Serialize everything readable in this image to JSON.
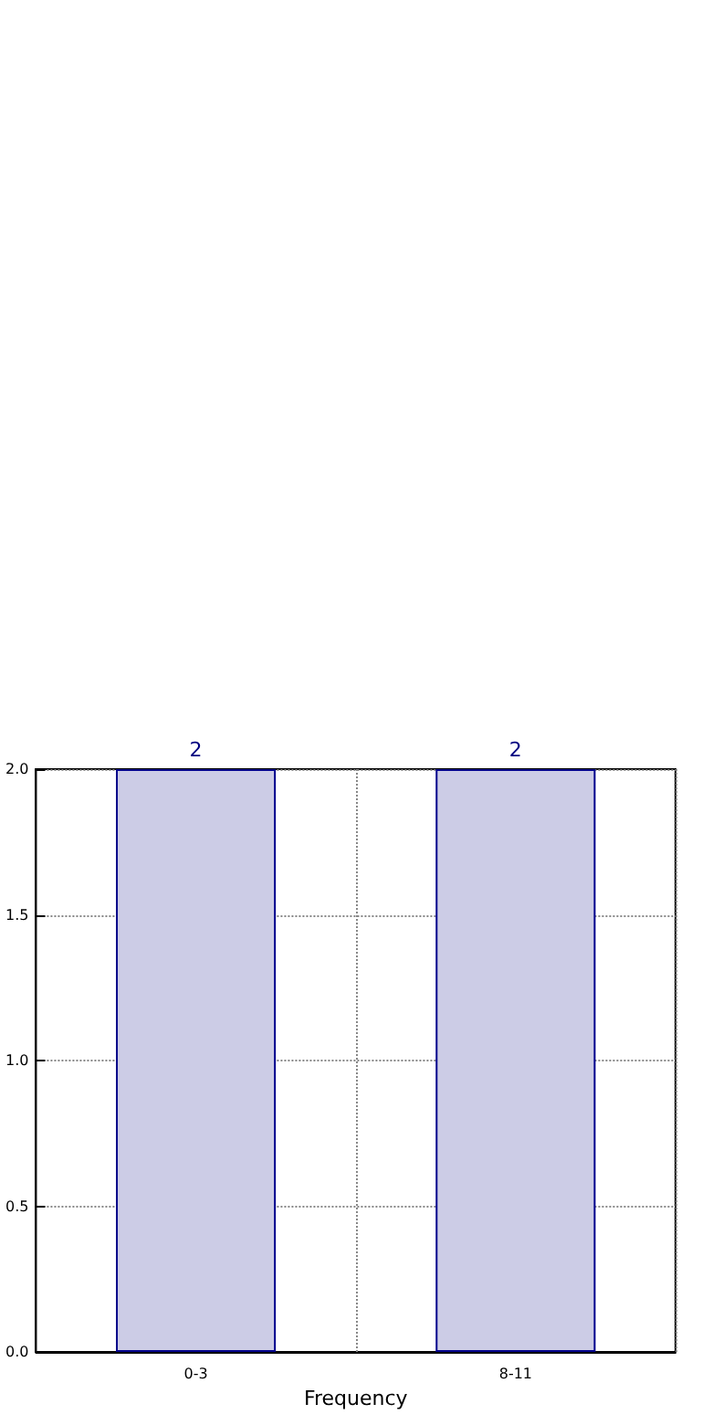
{
  "chart_data": {
    "type": "bar",
    "xlabel": "Frequency",
    "categories": [
      "0-3",
      "8-11"
    ],
    "values": [
      2,
      2
    ],
    "color": "#cccce6",
    "ylim": [
      0,
      2
    ],
    "yticks": [
      {
        "value": 0,
        "label": "0.0"
      },
      {
        "value": 0.5,
        "label": "0.5"
      },
      {
        "value": 1,
        "label": "1.0"
      },
      {
        "value": 1.5,
        "label": "1.5"
      },
      {
        "value": 2,
        "label": "2.0"
      }
    ],
    "grid": true,
    "data_labels": true
  }
}
